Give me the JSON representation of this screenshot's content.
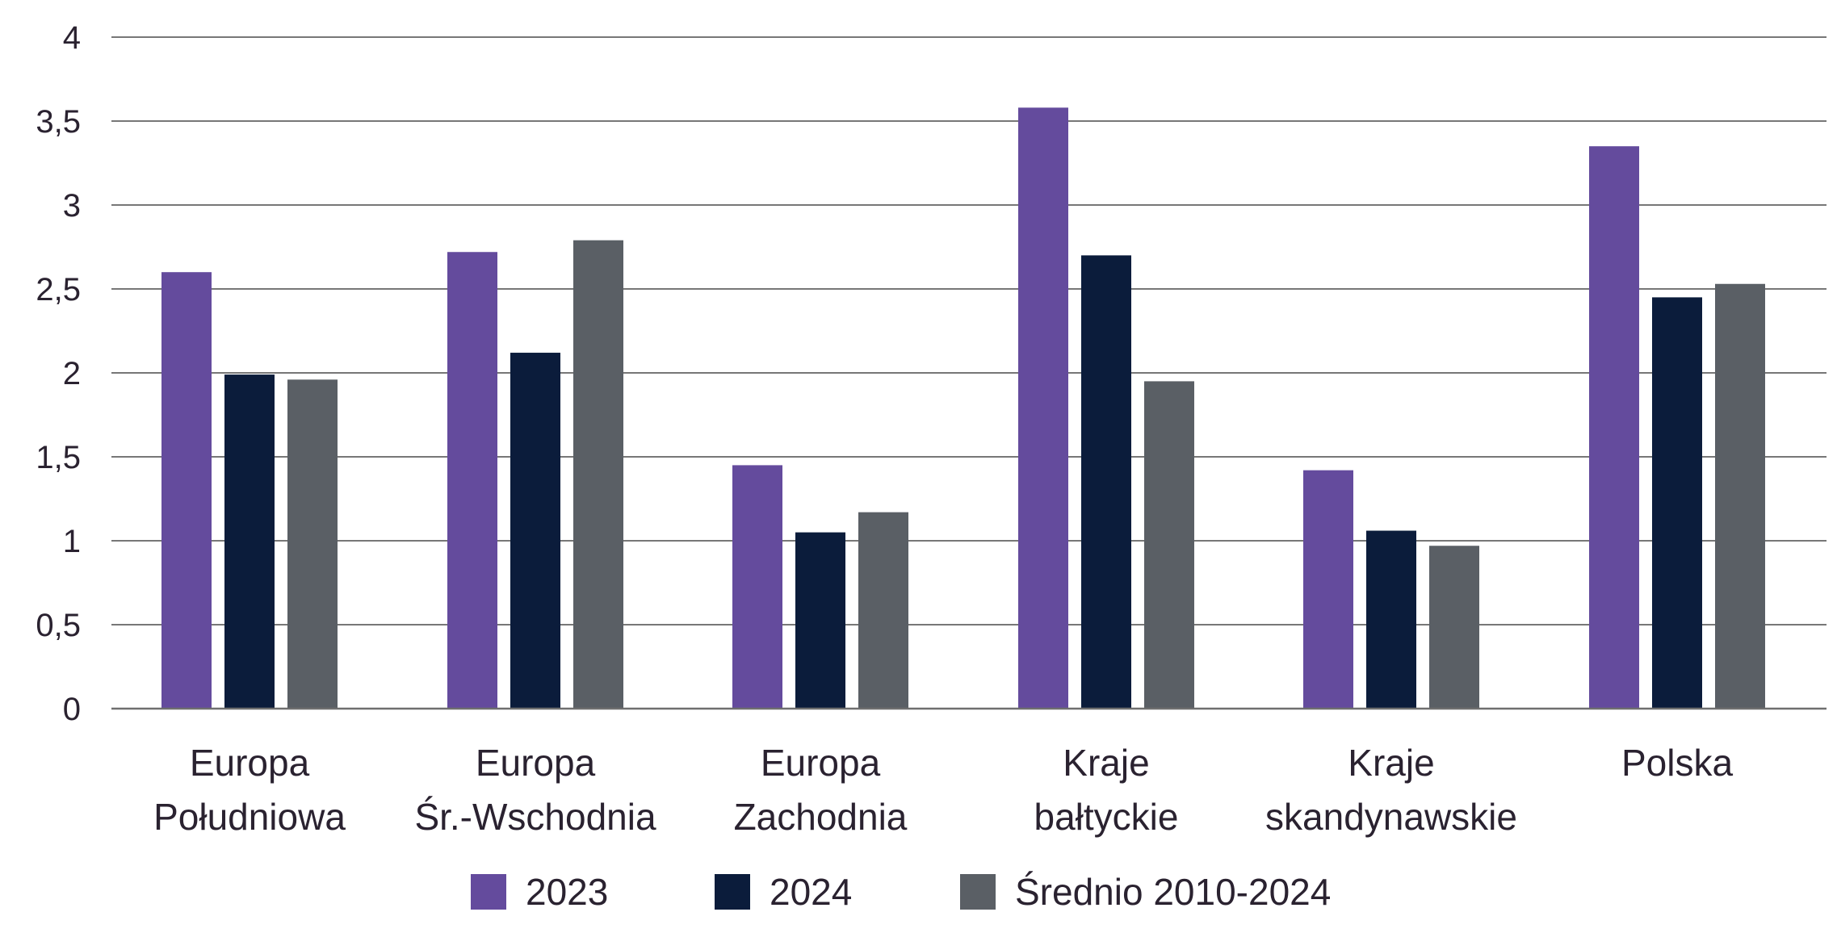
{
  "chart_data": {
    "type": "bar",
    "categories": [
      [
        "Europa",
        "Południowa"
      ],
      [
        "Europa",
        "Śr.-Wschodnia"
      ],
      [
        "Europa",
        "Zachodnia"
      ],
      [
        "Kraje",
        "bałtyckie"
      ],
      [
        "Kraje",
        "skandynawskie"
      ],
      [
        "Polska"
      ]
    ],
    "series": [
      {
        "name": "2023",
        "color": "#644b9d",
        "values": [
          2.6,
          2.72,
          1.45,
          3.58,
          1.42,
          3.35
        ]
      },
      {
        "name": "2024",
        "color": "#0b1c3b",
        "values": [
          1.99,
          2.12,
          1.05,
          2.7,
          1.06,
          2.45
        ]
      },
      {
        "name": "Średnio 2010-2024",
        "color": "#5a5f65",
        "values": [
          1.96,
          2.79,
          1.17,
          1.95,
          0.97,
          2.53
        ]
      }
    ],
    "yticks": [
      "0",
      "0,5",
      "1",
      "1,5",
      "2",
      "2,5",
      "3",
      "3,5",
      "4"
    ],
    "ylim": [
      0,
      4
    ],
    "grid": true,
    "legend_position": "bottom-center"
  }
}
